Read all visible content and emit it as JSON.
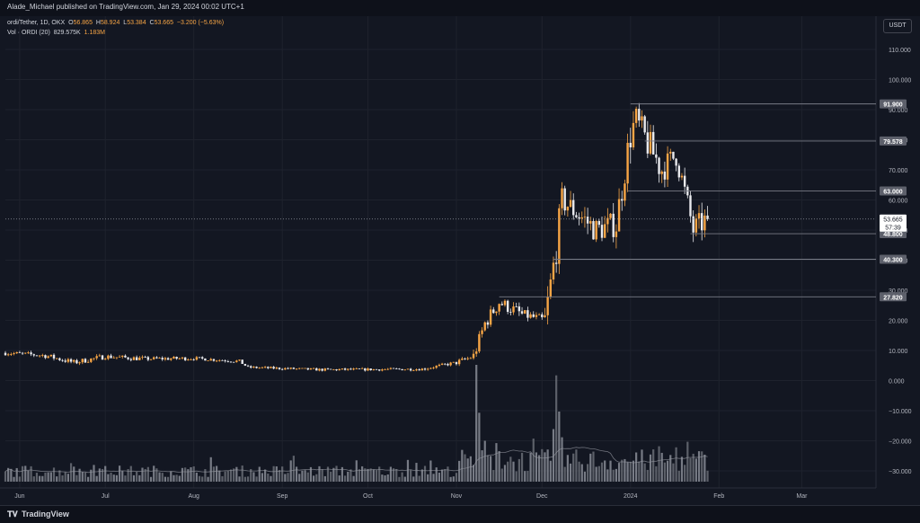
{
  "header": {
    "publisher": "Alade_Michael published on TradingView.com, Jan 29, 2024 00:02 UTC+1"
  },
  "legend": {
    "symbol": "ordi/Tether, 1D, OKX",
    "open_label": "O",
    "open": "56.865",
    "high_label": "H",
    "high": "58.924",
    "low_label": "L",
    "low": "53.384",
    "close_label": "C",
    "close": "53.665",
    "change": "−3.200 (−5.63%)",
    "vol_label": "Vol · ORDI (20)",
    "vol_ma": "829.575K",
    "vol_value": "1.183M"
  },
  "currency": "USDT",
  "footer": {
    "logo_text": "TradingView"
  },
  "colors": {
    "up": "#f7a545",
    "down": "#e9eaee",
    "background": "#131722",
    "axis_text": "#b2b5be",
    "grid": "#1e222d",
    "level_line": "#787b86"
  },
  "chart_data": {
    "type": "candlestick",
    "title": "ordi/Tether, 1D, OKX",
    "y_axis_ticks": [
      "110.000",
      "100.000",
      "90.000",
      "80.000",
      "70.000",
      "60.000",
      "50.000",
      "40.000",
      "30.000",
      "20.000",
      "10.000",
      "0.000",
      "−10.000",
      "−20.000",
      "−30.000"
    ],
    "y_tick_values": [
      110,
      100,
      90,
      80,
      70,
      60,
      50,
      40,
      30,
      20,
      10,
      0,
      -10,
      -20,
      -30
    ],
    "ylim": [
      -35,
      120
    ],
    "x_axis_ticks": [
      "Jun",
      "Jul",
      "Aug",
      "Sep",
      "Oct",
      "Nov",
      "Dec",
      "2024",
      "Feb",
      "Mar"
    ],
    "x_tick_dates": [
      "2023-06-01",
      "2023-07-01",
      "2023-08-01",
      "2023-09-01",
      "2023-10-01",
      "2023-11-01",
      "2023-12-01",
      "2024-01-01",
      "2024-02-01",
      "2024-03-01"
    ],
    "x_range": [
      "2023-05-27",
      "2024-03-27"
    ],
    "current_price": {
      "value": 53.665,
      "label": "53.665",
      "countdown": "57:39"
    },
    "levels": [
      {
        "value": 91.9,
        "label": "91.900",
        "from": "2024-01-01"
      },
      {
        "value": 79.578,
        "label": "79.578",
        "from": "2024-01-06"
      },
      {
        "value": 63.0,
        "label": "63.000",
        "from": "2023-12-31"
      },
      {
        "value": 48.8,
        "label": "48.800",
        "from": "2024-01-22"
      },
      {
        "value": 40.3,
        "label": "40.300",
        "from": "2023-12-05"
      },
      {
        "value": 27.82,
        "label": "27.820",
        "from": "2023-11-16"
      }
    ],
    "price_segments": [
      {
        "start": "2023-05-27",
        "end": "2023-06-10",
        "open": 9.2,
        "close": 8.3,
        "amp": 0.7
      },
      {
        "start": "2023-06-10",
        "end": "2023-06-20",
        "open": 8.3,
        "close": 6.0,
        "amp": 0.8
      },
      {
        "start": "2023-06-20",
        "end": "2023-07-01",
        "open": 6.0,
        "close": 8.0,
        "amp": 0.8
      },
      {
        "start": "2023-07-01",
        "end": "2023-07-15",
        "open": 8.0,
        "close": 7.2,
        "amp": 0.7
      },
      {
        "start": "2023-07-15",
        "end": "2023-08-01",
        "open": 7.2,
        "close": 7.4,
        "amp": 0.6
      },
      {
        "start": "2023-08-01",
        "end": "2023-08-17",
        "open": 7.4,
        "close": 6.4,
        "amp": 0.5
      },
      {
        "start": "2023-08-17",
        "end": "2023-08-20",
        "open": 6.4,
        "close": 4.4,
        "amp": 0.5
      },
      {
        "start": "2023-08-20",
        "end": "2023-09-15",
        "open": 4.4,
        "close": 3.6,
        "amp": 0.4
      },
      {
        "start": "2023-09-15",
        "end": "2023-10-20",
        "open": 3.6,
        "close": 3.8,
        "amp": 0.4
      },
      {
        "start": "2023-10-20",
        "end": "2023-11-01",
        "open": 3.8,
        "close": 6.0,
        "amp": 0.5
      },
      {
        "start": "2023-11-01",
        "end": "2023-11-07",
        "open": 6.0,
        "close": 8.0,
        "amp": 0.8
      },
      {
        "start": "2023-11-07",
        "end": "2023-11-11",
        "open": 8.0,
        "close": 19.0,
        "amp": 2.0
      },
      {
        "start": "2023-11-11",
        "end": "2023-11-16",
        "open": 19.0,
        "close": 26.0,
        "amp": 2.2
      },
      {
        "start": "2023-11-16",
        "end": "2023-11-24",
        "open": 26.0,
        "close": 22.0,
        "amp": 2.0
      },
      {
        "start": "2023-11-24",
        "end": "2023-12-02",
        "open": 22.0,
        "close": 20.0,
        "amp": 1.5
      },
      {
        "start": "2023-12-02",
        "end": "2023-12-06",
        "open": 20.0,
        "close": 44.0,
        "amp": 4.0
      },
      {
        "start": "2023-12-06",
        "end": "2023-12-08",
        "open": 44.0,
        "close": 60.0,
        "amp": 5.0
      },
      {
        "start": "2023-12-08",
        "end": "2023-12-20",
        "open": 60.0,
        "close": 50.0,
        "amp": 4.0
      },
      {
        "start": "2023-12-20",
        "end": "2023-12-27",
        "open": 50.0,
        "close": 52.0,
        "amp": 4.0
      },
      {
        "start": "2023-12-27",
        "end": "2024-01-01",
        "open": 52.0,
        "close": 82.0,
        "amp": 5.0
      },
      {
        "start": "2024-01-01",
        "end": "2024-01-03",
        "open": 82.0,
        "close": 86.0,
        "amp": 6.0
      },
      {
        "start": "2024-01-03",
        "end": "2024-01-12",
        "open": 86.0,
        "close": 70.0,
        "amp": 5.0
      },
      {
        "start": "2024-01-12",
        "end": "2024-01-17",
        "open": 70.0,
        "close": 75.0,
        "amp": 4.0
      },
      {
        "start": "2024-01-17",
        "end": "2024-01-23",
        "open": 75.0,
        "close": 50.0,
        "amp": 4.0
      },
      {
        "start": "2024-01-23",
        "end": "2024-01-28",
        "open": 50.0,
        "close": 53.665,
        "amp": 4.0
      }
    ],
    "volume_spikes": [
      {
        "date": "2023-11-08",
        "height_ratio": 1.0
      },
      {
        "date": "2023-11-09",
        "height_ratio": 0.59
      },
      {
        "date": "2023-11-11",
        "height_ratio": 0.35
      },
      {
        "date": "2023-12-06",
        "height_ratio": 0.91
      },
      {
        "date": "2023-12-07",
        "height_ratio": 0.6
      },
      {
        "date": "2023-12-05",
        "height_ratio": 0.45
      },
      {
        "date": "2023-12-08",
        "height_ratio": 0.38
      },
      {
        "date": "2023-11-15",
        "height_ratio": 0.33
      },
      {
        "date": "2024-01-03",
        "height_ratio": 0.25
      }
    ]
  }
}
